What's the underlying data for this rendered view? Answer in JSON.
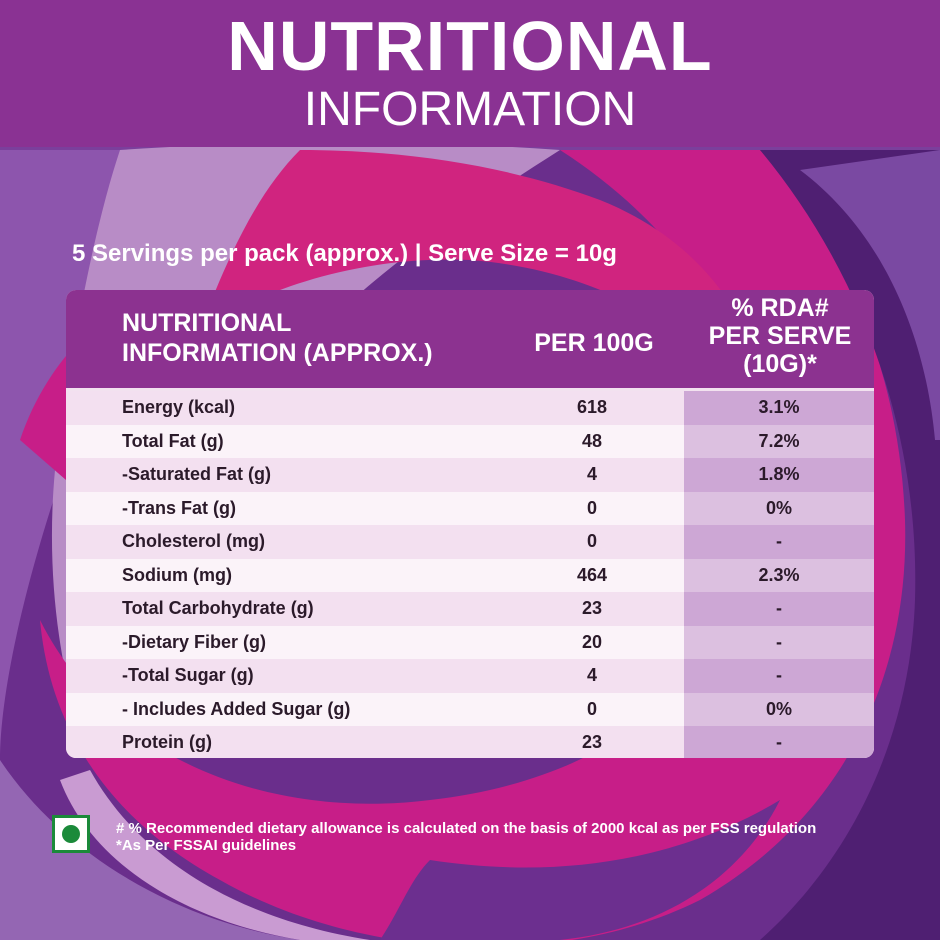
{
  "colors": {
    "header_bg": "#8a3293",
    "table_header_bg": "#8c3290",
    "magenta": "#c71e88",
    "purple_dark": "#5b257a",
    "purple_light": "#b07fc0",
    "veg_green": "#1b8a3a"
  },
  "header": {
    "title": "NUTRITIONAL",
    "subtitle": "INFORMATION"
  },
  "servings_line": "5 Servings per pack (approx.) | Serve Size = 10g",
  "table": {
    "head": {
      "name_line1": "NUTRITIONAL",
      "name_line2": "INFORMATION (APPROX.)",
      "per100": "PER 100G",
      "rda_line1": "% RDA#",
      "rda_line2": "PER SERVE",
      "rda_line3": "(10G)*"
    },
    "rows": [
      {
        "name": "Energy (kcal)",
        "per100": "618",
        "rda": "3.1%"
      },
      {
        "name": "Total Fat (g)",
        "per100": "48",
        "rda": "7.2%"
      },
      {
        "name": "-Saturated Fat (g)",
        "per100": "4",
        "rda": "1.8%"
      },
      {
        "name": "-Trans Fat (g)",
        "per100": "0",
        "rda": "0%"
      },
      {
        "name": "Cholesterol (mg)",
        "per100": "0",
        "rda": "-"
      },
      {
        "name": "Sodium (mg)",
        "per100": "464",
        "rda": "2.3%"
      },
      {
        "name": "Total Carbohydrate (g)",
        "per100": "23",
        "rda": "-"
      },
      {
        "name": "-Dietary Fiber (g)",
        "per100": "20",
        "rda": "-"
      },
      {
        "name": "-Total Sugar (g)",
        "per100": "4",
        "rda": "-"
      },
      {
        "name": "- Includes Added Sugar (g)",
        "per100": "0",
        "rda": "0%"
      },
      {
        "name": "Protein (g)",
        "per100": "23",
        "rda": "-"
      }
    ]
  },
  "footnotes": {
    "line1": "# % Recommended dietary allowance  is calculated on the basis of 2000 kcal as per FSS regulation",
    "line2": "*As Per FSSAI guidelines"
  },
  "icons": {
    "veg_mark": "veg-symbol-icon"
  }
}
